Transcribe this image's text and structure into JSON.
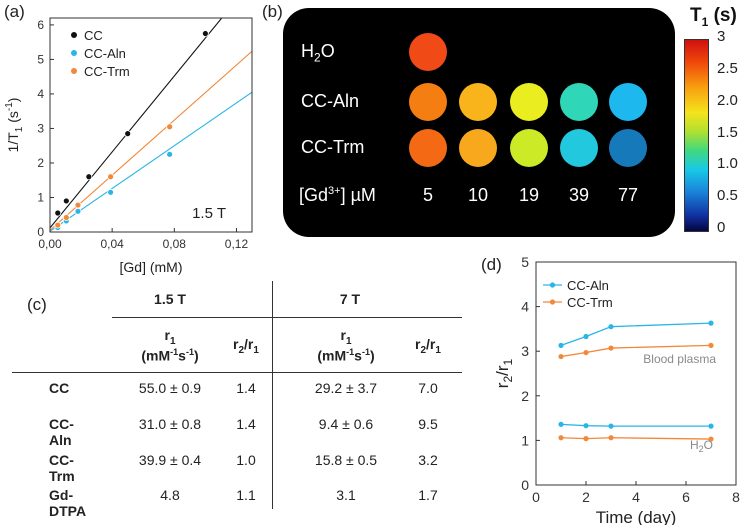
{
  "panels": {
    "a": "(a)",
    "b": "(b)",
    "c": "(c)",
    "d": "(d)"
  },
  "chart_data": [
    {
      "type": "scatter",
      "panel": "(a)",
      "xlabel": "[Gd] (mM)",
      "ylabel_main": "1/T",
      "ylabel_sub": "1",
      "ylabel_tail": " (s",
      "ylabel_sup": "-1",
      "ylabel_end": ")",
      "xlim": [
        0,
        0.13
      ],
      "ylim": [
        0,
        6.2
      ],
      "xticks": [
        "0,00",
        "0,04",
        "0,08",
        "0,12"
      ],
      "xtick_values": [
        0,
        0.04,
        0.08,
        0.12
      ],
      "yticks": [
        "0",
        "1",
        "2",
        "3",
        "4",
        "5",
        "6"
      ],
      "ytick_values": [
        0,
        1,
        2,
        3,
        4,
        5,
        6
      ],
      "annotation": "1.5 T",
      "series": [
        {
          "name": "CC",
          "color": "#111111",
          "x": [
            0.005,
            0.0105,
            0.025,
            0.05,
            0.1
          ],
          "y": [
            0.55,
            0.9,
            1.6,
            2.85,
            5.75
          ],
          "fit": [
            0.12,
            55.0
          ]
        },
        {
          "name": "CC-Aln",
          "color": "#29b6e6",
          "x": [
            0.005,
            0.0105,
            0.018,
            0.039,
            0.077
          ],
          "y": [
            0.13,
            0.32,
            0.6,
            1.15,
            2.25
          ],
          "fit": [
            0.02,
            31.0
          ]
        },
        {
          "name": "CC-Trm",
          "color": "#f2883a",
          "x": [
            0.005,
            0.0105,
            0.018,
            0.039,
            0.077
          ],
          "y": [
            0.2,
            0.42,
            0.78,
            1.6,
            3.05
          ],
          "fit": [
            0.05,
            39.9
          ]
        }
      ]
    },
    {
      "type": "line",
      "panel": "(d)",
      "xlabel": "Time (day)",
      "ylabel": "r",
      "ylabel_sub1": "2",
      "ylabel_mid": "/r",
      "ylabel_sub2": "1",
      "xlim": [
        0,
        8
      ],
      "ylim": [
        0,
        5
      ],
      "xticks": [
        "0",
        "2",
        "4",
        "6",
        "8"
      ],
      "xtick_values": [
        0,
        2,
        4,
        6,
        8
      ],
      "yticks": [
        "0",
        "1",
        "2",
        "3",
        "4",
        "5"
      ],
      "ytick_values": [
        0,
        1,
        2,
        3,
        4,
        5
      ],
      "annotations": {
        "plasma": "Blood plasma",
        "water": "H",
        "water_sub": "2",
        "water_tail": "O"
      },
      "series": [
        {
          "name": "CC-Aln",
          "color": "#29b6e6",
          "group": "plasma",
          "x": [
            1,
            2,
            3,
            7
          ],
          "y": [
            3.13,
            3.33,
            3.55,
            3.63
          ]
        },
        {
          "name": "CC-Trm",
          "color": "#f2883a",
          "group": "plasma",
          "x": [
            1,
            2,
            3,
            7
          ],
          "y": [
            2.88,
            2.97,
            3.07,
            3.13
          ]
        },
        {
          "name": "CC-Aln",
          "color": "#29b6e6",
          "group": "water",
          "x": [
            1,
            2,
            3,
            7
          ],
          "y": [
            1.36,
            1.33,
            1.32,
            1.32
          ]
        },
        {
          "name": "CC-Trm",
          "color": "#f2883a",
          "group": "water",
          "x": [
            1,
            2,
            3,
            7
          ],
          "y": [
            1.06,
            1.04,
            1.06,
            1.03
          ]
        }
      ],
      "legend": [
        "CC-Aln",
        "CC-Trm"
      ]
    }
  ],
  "mri": {
    "rows": [
      {
        "label": "H",
        "label_sub": "2",
        "label_tail": "O",
        "colors": [
          "#f04a16"
        ]
      },
      {
        "label": "CC-Aln",
        "label_sub": "",
        "label_tail": "",
        "colors": [
          "#f47e12",
          "#f9b41b",
          "#eaee20",
          "#2fd6b8",
          "#1cb8ee"
        ]
      },
      {
        "label": "CC-Trm",
        "label_sub": "",
        "label_tail": "",
        "colors": [
          "#f46a14",
          "#f7a81c",
          "#cdea26",
          "#22c8de",
          "#1579ba"
        ]
      }
    ],
    "conc_label_pre": "[Gd",
    "conc_label_sup": "3+",
    "conc_label_post": "]  µM",
    "concentrations": [
      "5",
      "10",
      "19",
      "39",
      "77"
    ]
  },
  "colorbar": {
    "title": "T",
    "title_sub": "1",
    "title_tail": " (s)",
    "ticks": [
      "3",
      "2.5",
      "2.0",
      "1.5",
      "1.0",
      "0.5",
      "0"
    ]
  },
  "table": {
    "field_headers": [
      "1.5 T",
      "7 T"
    ],
    "col_headers": {
      "r1": "r",
      "r1_sub": "1",
      "unit_pre": "(mM",
      "unit_sup1": "-1",
      "unit_mid": "s",
      "unit_sup2": "-1",
      "unit_post": ")",
      "ratio": "r",
      "ratio_sub1": "2",
      "ratio_mid": "/r",
      "ratio_sub2": "1"
    },
    "rows": [
      {
        "name": "CC",
        "r1_15": "55.0 ± 0.9",
        "ratio_15": "1.4",
        "r1_7": "29.2 ± 3.7",
        "ratio_7": "7.0"
      },
      {
        "name": "CC-Aln",
        "r1_15": "31.0 ± 0.8",
        "ratio_15": "1.4",
        "r1_7": "9.4 ± 0.6",
        "ratio_7": "9.5"
      },
      {
        "name": "CC-Trm",
        "r1_15": "39.9 ± 0.4",
        "ratio_15": "1.0",
        "r1_7": "15.8 ± 0.5",
        "ratio_7": "3.2"
      },
      {
        "name": "Gd-DTPA",
        "r1_15": "4.8",
        "ratio_15": "1.1",
        "r1_7": "3.1",
        "ratio_7": "1.7"
      }
    ]
  }
}
